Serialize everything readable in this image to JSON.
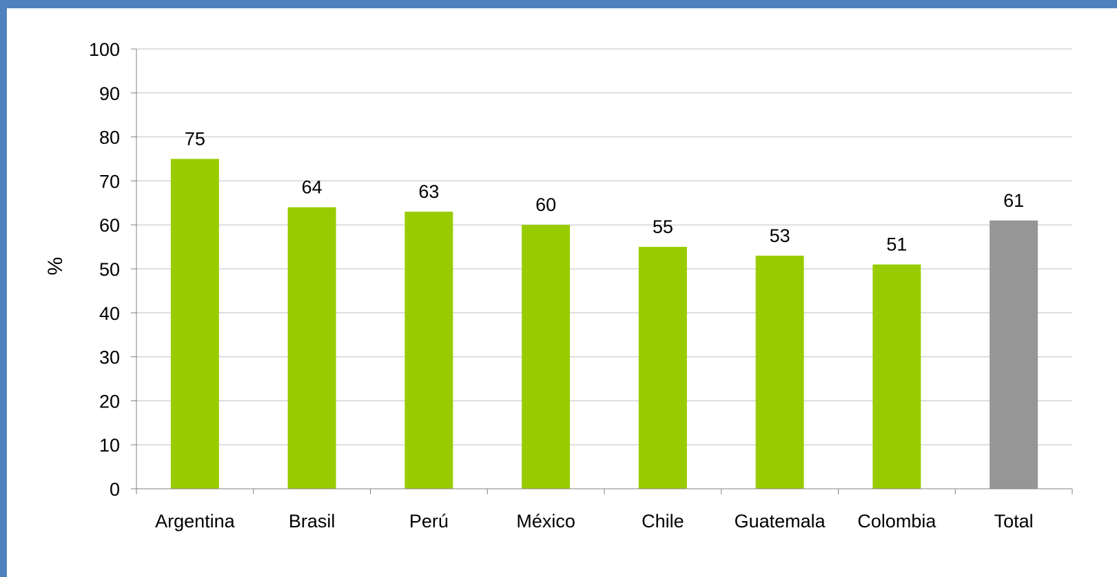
{
  "colors": {
    "frame_border": "#4f81bd",
    "background": "#ffffff",
    "bar_default": "#99cc00",
    "bar_total": "#969696",
    "gridline": "#c0c0c0",
    "axis": "#808080"
  },
  "chart_data": {
    "type": "bar",
    "title": "",
    "xlabel": "",
    "ylabel": "%",
    "ylim": [
      0,
      100
    ],
    "yticks": [
      0,
      10,
      20,
      30,
      40,
      50,
      60,
      70,
      80,
      90,
      100
    ],
    "grid": true,
    "legend": "none",
    "categories": [
      "Argentina",
      "Brasil",
      "Perú",
      "México",
      "Chile",
      "Guatemala",
      "Colombia",
      "Total"
    ],
    "values": [
      75,
      64,
      63,
      60,
      55,
      53,
      51,
      61
    ],
    "data_labels": [
      "75",
      "64",
      "63",
      "60",
      "55",
      "53",
      "51",
      "61"
    ],
    "bar_colors": [
      "#99cc00",
      "#99cc00",
      "#99cc00",
      "#99cc00",
      "#99cc00",
      "#99cc00",
      "#99cc00",
      "#969696"
    ]
  }
}
